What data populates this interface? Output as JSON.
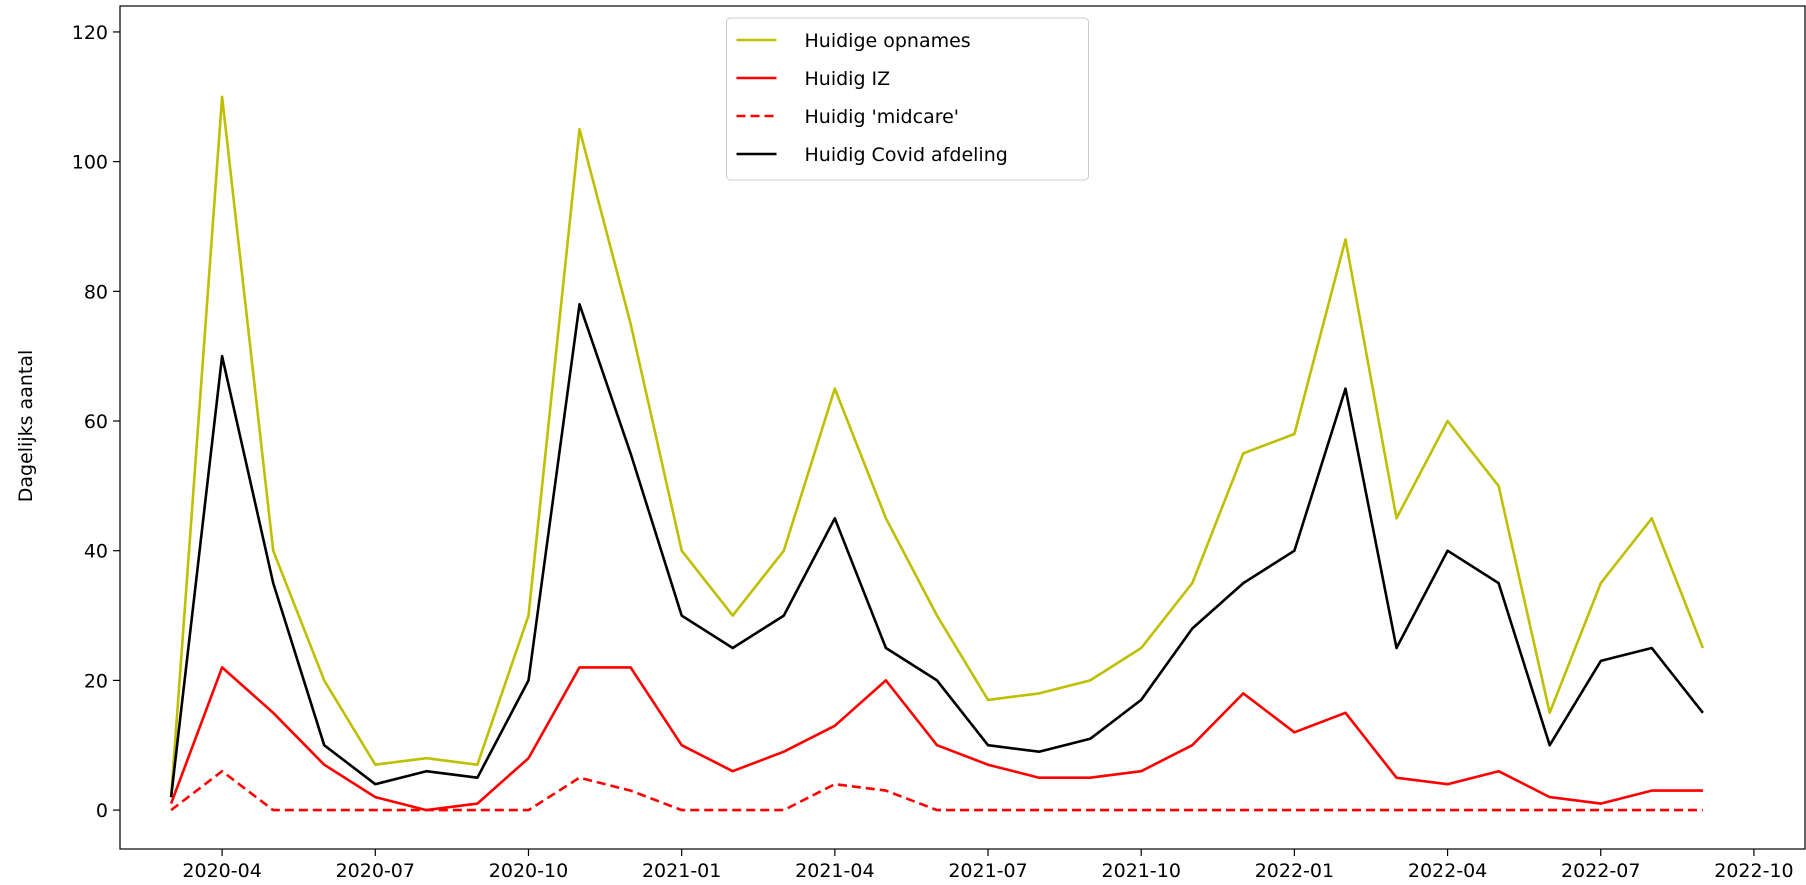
{
  "chart_data": {
    "type": "line",
    "ylabel": "Dagelijks aantal",
    "x": [
      "2020-03",
      "2020-04",
      "2020-05",
      "2020-06",
      "2020-07",
      "2020-08",
      "2020-09",
      "2020-10",
      "2020-11",
      "2020-12",
      "2021-01",
      "2021-02",
      "2021-03",
      "2021-04",
      "2021-05",
      "2021-06",
      "2021-07",
      "2021-08",
      "2021-09",
      "2021-10",
      "2021-11",
      "2021-12",
      "2022-01",
      "2022-02",
      "2022-03",
      "2022-04",
      "2022-05",
      "2022-06",
      "2022-07",
      "2022-08",
      "2022-09"
    ],
    "series": [
      {
        "name": "Huidige opnames",
        "color": "#bfbf00",
        "linestyle": "solid",
        "values": [
          2,
          110,
          40,
          20,
          7,
          8,
          7,
          30,
          105,
          75,
          40,
          30,
          40,
          65,
          45,
          30,
          17,
          18,
          20,
          25,
          35,
          55,
          58,
          88,
          45,
          60,
          50,
          15,
          35,
          45,
          25
        ]
      },
      {
        "name": "Huidig IZ",
        "color": "#ff0000",
        "linestyle": "solid",
        "values": [
          1,
          22,
          15,
          7,
          2,
          0,
          1,
          8,
          22,
          22,
          10,
          6,
          9,
          13,
          20,
          10,
          7,
          5,
          5,
          6,
          10,
          18,
          12,
          15,
          5,
          4,
          6,
          2,
          1,
          3,
          3
        ]
      },
      {
        "name": "Huidig 'midcare'",
        "color": "#ff0000",
        "linestyle": "dashed",
        "values": [
          0,
          6,
          0,
          0,
          0,
          0,
          0,
          0,
          5,
          3,
          0,
          0,
          0,
          4,
          3,
          0,
          0,
          0,
          0,
          0,
          0,
          0,
          0,
          0,
          0,
          0,
          0,
          0,
          0,
          0,
          0
        ]
      },
      {
        "name": "Huidig Covid afdeling",
        "color": "#000000",
        "linestyle": "solid",
        "values": [
          2,
          70,
          35,
          10,
          4,
          6,
          5,
          20,
          78,
          55,
          30,
          25,
          30,
          45,
          25,
          20,
          10,
          9,
          11,
          17,
          28,
          35,
          40,
          65,
          25,
          40,
          35,
          10,
          23,
          25,
          15
        ]
      }
    ],
    "xlim": [
      "2020-02",
      "2022-11"
    ],
    "xticks": [
      "2020-04",
      "2020-07",
      "2020-10",
      "2021-01",
      "2021-04",
      "2021-07",
      "2021-10",
      "2022-01",
      "2022-04",
      "2022-07",
      "2022-10"
    ],
    "ylim": [
      -6,
      124
    ],
    "yticks": [
      0,
      20,
      40,
      60,
      80,
      100,
      120
    ],
    "grid": false,
    "legend": "upper center"
  }
}
